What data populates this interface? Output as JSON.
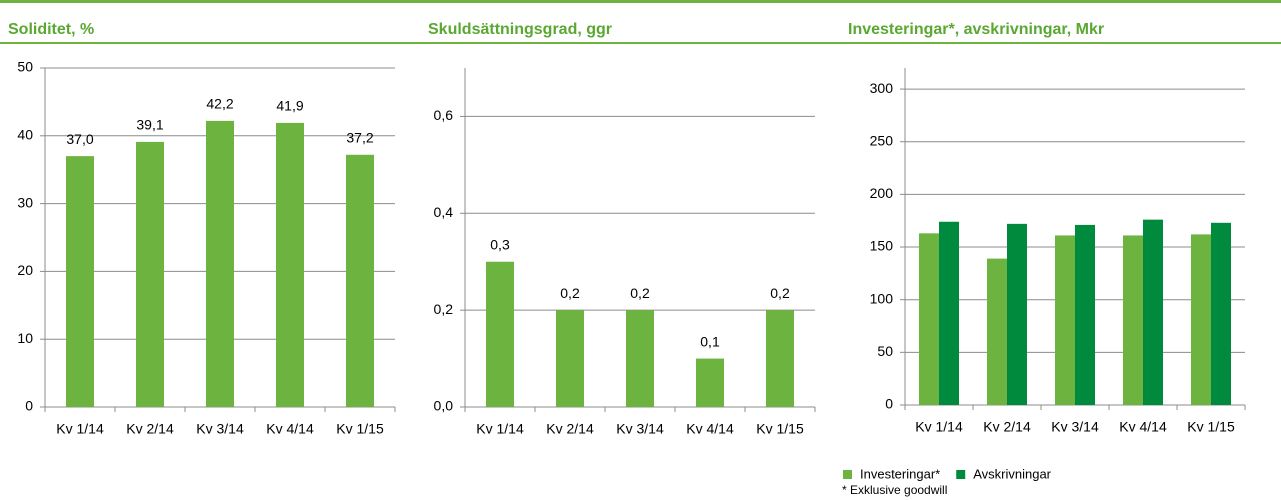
{
  "chart_data": [
    {
      "type": "bar",
      "title": "Soliditet, %",
      "categories": [
        "Kv 1/14",
        "Kv 2/14",
        "Kv 3/14",
        "Kv 4/14",
        "Kv 1/15"
      ],
      "values": [
        37.0,
        39.1,
        42.2,
        41.9,
        37.2
      ],
      "value_labels": [
        "37,0",
        "39,1",
        "42,2",
        "41,9",
        "37,2"
      ],
      "color": "#6db33f",
      "ylim": [
        0,
        50
      ],
      "yticks": [
        0,
        10,
        20,
        30,
        40,
        50
      ],
      "grid": true
    },
    {
      "type": "bar",
      "title": "Skuldsättningsgrad, ggr",
      "categories": [
        "Kv 1/14",
        "Kv 2/14",
        "Kv 3/14",
        "Kv 4/14",
        "Kv 1/15"
      ],
      "values": [
        0.3,
        0.2,
        0.2,
        0.1,
        0.2
      ],
      "value_labels": [
        "0,3",
        "0,2",
        "0,2",
        "0,1",
        "0,2"
      ],
      "color": "#6db33f",
      "ylim": [
        0,
        0.7
      ],
      "yticks": [
        {
          "value": 0,
          "label": "0,0"
        },
        {
          "value": 0.2,
          "label": "0,2"
        },
        {
          "value": 0.4,
          "label": "0,4"
        },
        {
          "value": 0.6,
          "label": "0,6"
        }
      ],
      "grid": true
    },
    {
      "type": "grouped_bar",
      "title": "Investeringar*, avskrivningar, Mkr",
      "categories": [
        "Kv 1/14",
        "Kv 2/14",
        "Kv 3/14",
        "Kv 4/14",
        "Kv 1/15"
      ],
      "series": [
        {
          "name": "Investeringar*",
          "color": "#6db33f",
          "values": [
            163,
            139,
            161,
            161,
            162
          ]
        },
        {
          "name": "Avskrivningar",
          "color": "#008a3e",
          "values": [
            174,
            172,
            171,
            176,
            173
          ]
        }
      ],
      "ylim": [
        0,
        320
      ],
      "yticks": [
        0,
        50,
        100,
        150,
        200,
        250,
        300
      ],
      "grid": true,
      "legend": "bottom",
      "annotation": "* Exklusive goodwill"
    }
  ]
}
